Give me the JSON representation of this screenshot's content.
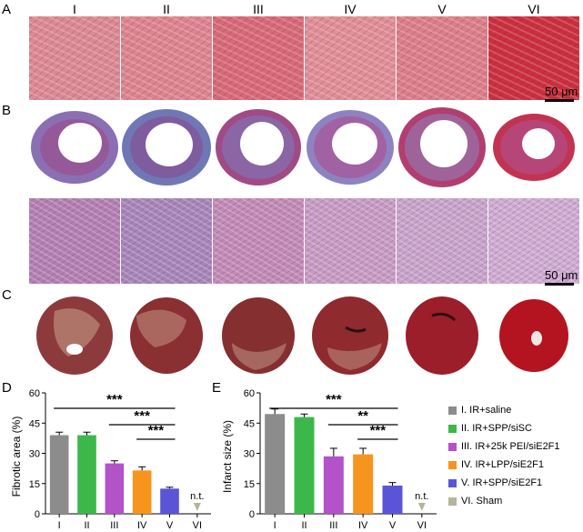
{
  "panels": {
    "A": "A",
    "B": "B",
    "C": "C",
    "D": "D",
    "E": "E"
  },
  "group_labels": [
    "I",
    "II",
    "III",
    "IV",
    "V",
    "VI"
  ],
  "scale_bar_A": "50 μm",
  "scale_bar_B": "50 μm",
  "colors": {
    "he_tiles": [
      "#d98a94",
      "#dc8591",
      "#d66a78",
      "#de8f98",
      "#da7f8b",
      "#c9303f"
    ],
    "masson_tiles": [
      "#b47fb0",
      "#a884b7",
      "#c38ab4",
      "#c99bc2",
      "#c9a3c8",
      "#d0abd0"
    ],
    "ttc_hearts": [
      "#8d3a3c",
      "#8a2f32",
      "#852f30",
      "#8f2a2f",
      "#9b1e2a",
      "#b3141f"
    ]
  },
  "legend": [
    {
      "label": "I. IR+saline",
      "color": "#8c8c8c"
    },
    {
      "label": "II. IR+SPP/siSC",
      "color": "#3cb84a"
    },
    {
      "label": "III. IR+25k PEI/siE2F1",
      "color": "#b452c9"
    },
    {
      "label": "IV. IR+LPP/siE2F1",
      "color": "#f7941d"
    },
    {
      "label": "V. IR+SPP/siE2F1",
      "color": "#5a55d6"
    },
    {
      "label": "VI. Sham",
      "color": "#b5b59a"
    }
  ],
  "chart_data": [
    {
      "type": "bar",
      "panel": "D",
      "ylabel": "Fibrotic area (%)",
      "categories": [
        "I",
        "II",
        "III",
        "IV",
        "V",
        "VI"
      ],
      "values": [
        39,
        39,
        25,
        21.5,
        12.5,
        null
      ],
      "errors": [
        1.5,
        1.5,
        1.3,
        1.8,
        0.7,
        null
      ],
      "ylim": [
        0,
        60
      ],
      "yticks": [
        0,
        15,
        30,
        45,
        60
      ],
      "colors": [
        "#8c8c8c",
        "#3cb84a",
        "#b452c9",
        "#f7941d",
        "#5a55d6",
        "#b5b59a"
      ],
      "annotations": [
        {
          "text": "***",
          "from": 0,
          "to": 4
        },
        {
          "text": "***",
          "from": 2,
          "to": 4
        },
        {
          "text": "***",
          "from": 3,
          "to": 4
        },
        {
          "text": "n.t.",
          "at": 5
        }
      ]
    },
    {
      "type": "bar",
      "panel": "E",
      "ylabel": "Infarct size (%)",
      "categories": [
        "I",
        "II",
        "III",
        "IV",
        "V",
        "VI"
      ],
      "values": [
        49.5,
        48,
        28.5,
        29.5,
        14,
        null
      ],
      "errors": [
        2.5,
        1.5,
        4,
        3,
        1.5,
        null
      ],
      "ylim": [
        0,
        60
      ],
      "yticks": [
        0,
        15,
        30,
        45,
        60
      ],
      "colors": [
        "#8c8c8c",
        "#3cb84a",
        "#b452c9",
        "#f7941d",
        "#5a55d6",
        "#b5b59a"
      ],
      "annotations": [
        {
          "text": "***",
          "from": 0,
          "to": 4
        },
        {
          "text": "**",
          "from": 2,
          "to": 4
        },
        {
          "text": "***",
          "from": 3,
          "to": 4
        },
        {
          "text": "n.t.",
          "at": 5
        }
      ]
    }
  ]
}
